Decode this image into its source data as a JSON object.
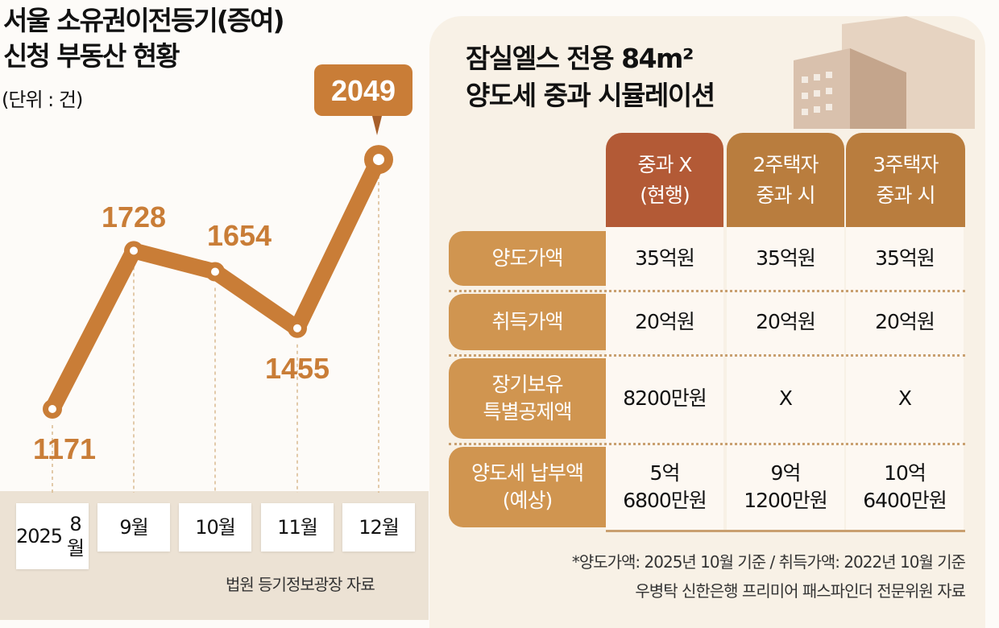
{
  "chart_data": {
    "type": "line",
    "title": "서울 소유권이전등기(증여) 신청 부동산 현황",
    "title_lines": [
      "서울 소유권이전등기(증여)",
      "신청 부동산 현황"
    ],
    "unit": "(단위 : 건)",
    "categories": [
      "2025 8월",
      "9월",
      "10월",
      "11월",
      "12월"
    ],
    "category_lines": [
      [
        "2025",
        "8월"
      ],
      [
        "9월"
      ],
      [
        "10월"
      ],
      [
        "11월"
      ],
      [
        "12월"
      ]
    ],
    "values": [
      1171,
      1728,
      1654,
      1455,
      2049
    ],
    "highlight_index": 4,
    "color": "#c97d37",
    "source": "법원 등기정보광장 자료"
  },
  "table": {
    "title_lines": [
      "잠실엘스 전용 84m²",
      "양도세 중과 시뮬레이션"
    ],
    "headers": [
      [
        "중과 X",
        "(현행)"
      ],
      [
        "2주택자",
        "중과 시"
      ],
      [
        "3주택자",
        "중과 시"
      ]
    ],
    "header_colors": [
      "#b35a36",
      "#b97d3e",
      "#b97d3e"
    ],
    "rows": [
      {
        "label": [
          "양도가액"
        ],
        "cells": [
          [
            "35억원"
          ],
          [
            "35억원"
          ],
          [
            "35억원"
          ]
        ]
      },
      {
        "label": [
          "취득가액"
        ],
        "cells": [
          [
            "20억원"
          ],
          [
            "20억원"
          ],
          [
            "20억원"
          ]
        ]
      },
      {
        "label": [
          "장기보유",
          "특별공제액"
        ],
        "cells": [
          [
            "8200만원"
          ],
          [
            "X"
          ],
          [
            "X"
          ]
        ]
      },
      {
        "label": [
          "양도세 납부액",
          "(예상)"
        ],
        "cells": [
          [
            "5억",
            "6800만원"
          ],
          [
            "9억",
            "1200만원"
          ],
          [
            "10억",
            "6400만원"
          ]
        ]
      }
    ],
    "notes": [
      "*양도가액: 2025년 10월 기준 / 취득가액: 2022년 10월 기준",
      "우병탁 신한은행 프리미어 패스파인더 전문위원 자료"
    ]
  }
}
